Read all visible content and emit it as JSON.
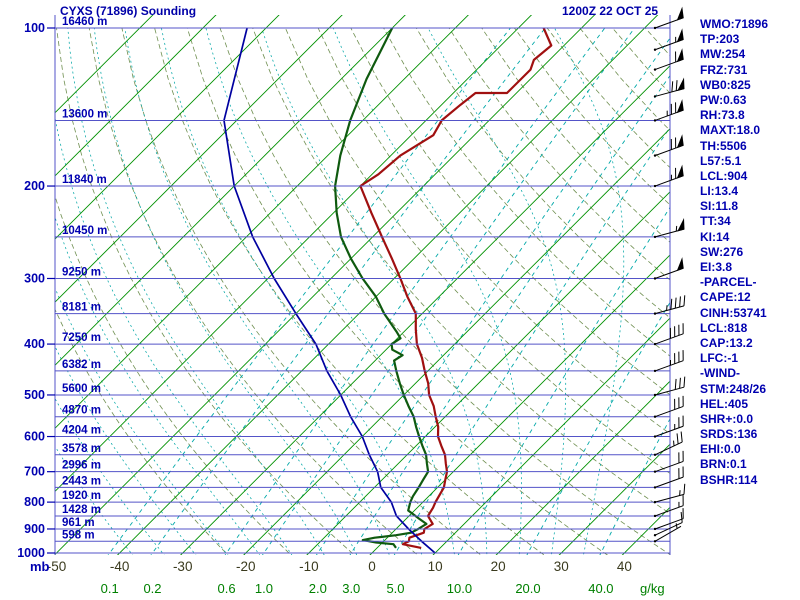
{
  "header": {
    "title": "CYXS (71896) Sounding",
    "datetime": "1200Z 22 OCT 25"
  },
  "axes": {
    "pressure_unit": "mb",
    "mixing_unit": "g/kg",
    "pressure_ticks": [
      100,
      200,
      300,
      400,
      500,
      600,
      700,
      800,
      900,
      1000
    ],
    "temp_ticks": [
      -50,
      -40,
      -30,
      -20,
      -10,
      0,
      10,
      20,
      30,
      40
    ],
    "height_labels": [
      {
        "p": 100,
        "text": "16460 m"
      },
      {
        "p": 150,
        "text": "13600 m"
      },
      {
        "p": 200,
        "text": "11840 m"
      },
      {
        "p": 250,
        "text": "10450 m"
      },
      {
        "p": 300,
        "text": "9250 m"
      },
      {
        "p": 350,
        "text": "8181 m"
      },
      {
        "p": 400,
        "text": "7250 m"
      },
      {
        "p": 450,
        "text": "6382 m"
      },
      {
        "p": 500,
        "text": "5600 m"
      },
      {
        "p": 550,
        "text": "4870 m"
      },
      {
        "p": 600,
        "text": "4204 m"
      },
      {
        "p": 650,
        "text": "3578 m"
      },
      {
        "p": 700,
        "text": "2996 m"
      },
      {
        "p": 750,
        "text": "2443 m"
      },
      {
        "p": 800,
        "text": "1920 m"
      },
      {
        "p": 850,
        "text": "1428 m"
      },
      {
        "p": 900,
        "text": "961 m"
      },
      {
        "p": 950,
        "text": "598 m"
      }
    ]
  },
  "chart_data": {
    "type": "line",
    "variant": "skew-t-log-p-sounding",
    "title": "CYXS (71896) Sounding",
    "valid_time": "1200Z 22 OCT 25",
    "pressure_range_mb": [
      100,
      1000
    ],
    "isobar_step_mb": 50,
    "temp_axis_range_c": [
      -50,
      40
    ],
    "isotherm_step_c": 10,
    "mixing_ratio_gkg": [
      0.1,
      0.2,
      0.6,
      1.0,
      2.0,
      3.0,
      5.0,
      10.0,
      20.0,
      40.0
    ],
    "colors": {
      "isobar": "#5353c8",
      "isotherm": "#009000",
      "mixing_ratio": "#00a8a8",
      "dry_adiabat": "#6f8f50",
      "moist_adiabat": "#00a6a6",
      "temperature": "#a01010",
      "dewpoint": "#0f5a0f",
      "parcel": "#0000a0",
      "axis_text": "#0000b0",
      "temp_text": "#3a3a1e",
      "mixing_text": "#008000",
      "barb": "#000000"
    },
    "series": [
      {
        "name": "temperature",
        "color": "#a01010",
        "width": 2.2,
        "points_p_t": [
          [
            978,
            7
          ],
          [
            962,
            3.5
          ],
          [
            950,
            4
          ],
          [
            935,
            3.5
          ],
          [
            915,
            5
          ],
          [
            900,
            4.5
          ],
          [
            880,
            5
          ],
          [
            850,
            3
          ],
          [
            820,
            2.5
          ],
          [
            800,
            2
          ],
          [
            775,
            1.5
          ],
          [
            750,
            1
          ],
          [
            725,
            0
          ],
          [
            700,
            -1
          ],
          [
            675,
            -2.5
          ],
          [
            650,
            -4
          ],
          [
            625,
            -6
          ],
          [
            600,
            -8
          ],
          [
            575,
            -9.5
          ],
          [
            550,
            -11.5
          ],
          [
            525,
            -13.5
          ],
          [
            500,
            -16
          ],
          [
            475,
            -18
          ],
          [
            450,
            -20.5
          ],
          [
            425,
            -23
          ],
          [
            400,
            -26
          ],
          [
            375,
            -28.5
          ],
          [
            350,
            -31
          ],
          [
            325,
            -35
          ],
          [
            300,
            -39
          ],
          [
            275,
            -43.5
          ],
          [
            250,
            -48.5
          ],
          [
            225,
            -54
          ],
          [
            200,
            -60
          ],
          [
            190,
            -59
          ],
          [
            175,
            -58.5
          ],
          [
            160,
            -56.5
          ],
          [
            150,
            -57.5
          ],
          [
            140,
            -57
          ],
          [
            133,
            -56.5
          ],
          [
            133,
            -51.5
          ],
          [
            120,
            -51.5
          ],
          [
            115,
            -52.5
          ],
          [
            108,
            -52
          ],
          [
            100,
            -56
          ]
        ]
      },
      {
        "name": "dewpoint",
        "color": "#0f5a0f",
        "width": 2.2,
        "points_p_t": [
          [
            978,
            3
          ],
          [
            962,
            2
          ],
          [
            955,
            -1
          ],
          [
            945,
            -3.5
          ],
          [
            935,
            -2
          ],
          [
            925,
            1
          ],
          [
            915,
            3
          ],
          [
            900,
            3.5
          ],
          [
            880,
            4
          ],
          [
            860,
            2
          ],
          [
            850,
            1
          ],
          [
            830,
            -1
          ],
          [
            800,
            -2
          ],
          [
            780,
            -2.5
          ],
          [
            750,
            -3
          ],
          [
            725,
            -3.5
          ],
          [
            700,
            -4
          ],
          [
            675,
            -5.5
          ],
          [
            650,
            -7
          ],
          [
            625,
            -9
          ],
          [
            600,
            -11
          ],
          [
            575,
            -13
          ],
          [
            550,
            -15
          ],
          [
            525,
            -17.5
          ],
          [
            500,
            -20
          ],
          [
            475,
            -22.5
          ],
          [
            450,
            -25
          ],
          [
            430,
            -27
          ],
          [
            420,
            -26.5
          ],
          [
            410,
            -29
          ],
          [
            400,
            -30
          ],
          [
            390,
            -29.5
          ],
          [
            380,
            -31
          ],
          [
            350,
            -36
          ],
          [
            325,
            -40
          ],
          [
            300,
            -45
          ],
          [
            275,
            -50
          ],
          [
            250,
            -55
          ],
          [
            225,
            -59.5
          ],
          [
            200,
            -64
          ],
          [
            175,
            -68
          ],
          [
            150,
            -72
          ],
          [
            125,
            -76
          ],
          [
            100,
            -80
          ]
        ]
      },
      {
        "name": "parcel",
        "color": "#0000a0",
        "width": 1.7,
        "points_p_t": [
          [
            1000,
            10
          ],
          [
            950,
            6
          ],
          [
            900,
            2
          ],
          [
            850,
            -2
          ],
          [
            800,
            -5
          ],
          [
            750,
            -9
          ],
          [
            700,
            -12
          ],
          [
            650,
            -16
          ],
          [
            600,
            -20
          ],
          [
            550,
            -25
          ],
          [
            500,
            -30
          ],
          [
            450,
            -36
          ],
          [
            400,
            -42
          ],
          [
            350,
            -50
          ],
          [
            300,
            -59
          ],
          [
            250,
            -69
          ],
          [
            200,
            -80
          ],
          [
            150,
            -92
          ],
          [
            100,
            -103
          ]
        ]
      }
    ],
    "winds_kt": [
      {
        "p": 950,
        "dir": 240,
        "spd": 5
      },
      {
        "p": 925,
        "dir": 245,
        "spd": 10
      },
      {
        "p": 900,
        "dir": 250,
        "spd": 10
      },
      {
        "p": 850,
        "dir": 250,
        "spd": 15
      },
      {
        "p": 800,
        "dir": 255,
        "spd": 15
      },
      {
        "p": 750,
        "dir": 250,
        "spd": 20
      },
      {
        "p": 700,
        "dir": 250,
        "spd": 20
      },
      {
        "p": 650,
        "dir": 245,
        "spd": 25
      },
      {
        "p": 600,
        "dir": 250,
        "spd": 25
      },
      {
        "p": 550,
        "dir": 250,
        "spd": 30
      },
      {
        "p": 500,
        "dir": 255,
        "spd": 30
      },
      {
        "p": 450,
        "dir": 250,
        "spd": 35
      },
      {
        "p": 400,
        "dir": 250,
        "spd": 40
      },
      {
        "p": 350,
        "dir": 255,
        "spd": 45
      },
      {
        "p": 300,
        "dir": 250,
        "spd": 50
      },
      {
        "p": 250,
        "dir": 255,
        "spd": 55
      },
      {
        "p": 200,
        "dir": 250,
        "spd": 65
      },
      {
        "p": 175,
        "dir": 250,
        "spd": 70
      },
      {
        "p": 150,
        "dir": 250,
        "spd": 75
      },
      {
        "p": 135,
        "dir": 255,
        "spd": 70
      },
      {
        "p": 120,
        "dir": 250,
        "spd": 60
      },
      {
        "p": 110,
        "dir": 250,
        "spd": 55
      },
      {
        "p": 100,
        "dir": 250,
        "spd": 50
      }
    ]
  },
  "stats": [
    "WMO:71896",
    "TP:203",
    "MW:254",
    "FRZ:731",
    "WB0:825",
    "PW:0.63",
    "RH:73.8",
    "MAXT:18.0",
    "TH:5506",
    "L57:5.1",
    "LCL:904",
    "LI:13.4",
    "SI:11.8",
    "TT:34",
    "KI:14",
    "SW:276",
    "EI:3.8",
    "-PARCEL-",
    "CAPE:12",
    "CINH:53741",
    "LCL:818",
    "CAP:13.2",
    "LFC:-1",
    "-WIND-",
    "STM:248/26",
    "HEL:405",
    "SHR+:0.0",
    "SRDS:136",
    "EHI:0.0",
    "BRN:0.1",
    "BSHR:114"
  ]
}
